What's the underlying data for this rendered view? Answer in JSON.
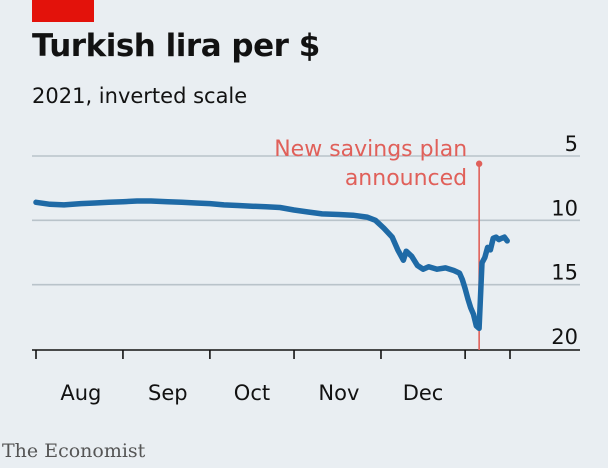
{
  "header": {
    "title": "Turkish lira per $",
    "subtitle": "2021, inverted scale"
  },
  "footer": {
    "source": "The Economist"
  },
  "colors": {
    "accent": "#e3120b",
    "line": "#1f6aa6",
    "annotation": "#e0605a",
    "grid": "#b9c3ca",
    "text": "#121212",
    "background": "#e9eef2"
  },
  "chart_data": {
    "type": "line",
    "inverted_y": true,
    "ylim": [
      5,
      20
    ],
    "yticks": [
      5,
      10,
      15,
      20
    ],
    "xlim": [
      "2021-07-15",
      "2021-12-31"
    ],
    "month_ticks": [
      "2021-07-15",
      "2021-08-15",
      "2021-09-15",
      "2021-10-15",
      "2021-11-15",
      "2021-12-15",
      "2021-12-31"
    ],
    "month_labels": [
      {
        "date": "2021-07-31",
        "label": "Aug"
      },
      {
        "date": "2021-08-31",
        "label": "Sep"
      },
      {
        "date": "2021-09-30",
        "label": "Oct"
      },
      {
        "date": "2021-10-31",
        "label": "Nov"
      },
      {
        "date": "2021-11-30",
        "label": "Dec"
      }
    ],
    "annotation": {
      "date": "2021-12-20",
      "value": 5.6,
      "lines": [
        "New savings plan",
        "announced"
      ]
    },
    "series": [
      {
        "points": [
          [
            "2021-07-15",
            8.6
          ],
          [
            "2021-07-20",
            8.75
          ],
          [
            "2021-07-25",
            8.8
          ],
          [
            "2021-07-31",
            8.7
          ],
          [
            "2021-08-05",
            8.65
          ],
          [
            "2021-08-10",
            8.6
          ],
          [
            "2021-08-15",
            8.55
          ],
          [
            "2021-08-20",
            8.5
          ],
          [
            "2021-08-25",
            8.5
          ],
          [
            "2021-08-31",
            8.55
          ],
          [
            "2021-09-05",
            8.6
          ],
          [
            "2021-09-10",
            8.65
          ],
          [
            "2021-09-15",
            8.7
          ],
          [
            "2021-09-20",
            8.8
          ],
          [
            "2021-09-25",
            8.85
          ],
          [
            "2021-09-30",
            8.9
          ],
          [
            "2021-10-05",
            8.95
          ],
          [
            "2021-10-10",
            9.0
          ],
          [
            "2021-10-15",
            9.2
          ],
          [
            "2021-10-20",
            9.35
          ],
          [
            "2021-10-25",
            9.5
          ],
          [
            "2021-10-31",
            9.55
          ],
          [
            "2021-11-05",
            9.6
          ],
          [
            "2021-11-10",
            9.75
          ],
          [
            "2021-11-13",
            10.0
          ],
          [
            "2021-11-16",
            10.6
          ],
          [
            "2021-11-19",
            11.3
          ],
          [
            "2021-11-21",
            12.3
          ],
          [
            "2021-11-23",
            13.1
          ],
          [
            "2021-11-24",
            12.4
          ],
          [
            "2021-11-26",
            12.8
          ],
          [
            "2021-11-28",
            13.5
          ],
          [
            "2021-11-30",
            13.8
          ],
          [
            "2021-12-02",
            13.6
          ],
          [
            "2021-12-05",
            13.8
          ],
          [
            "2021-12-08",
            13.7
          ],
          [
            "2021-12-11",
            13.9
          ],
          [
            "2021-12-13",
            14.1
          ],
          [
            "2021-12-14",
            14.6
          ],
          [
            "2021-12-15",
            15.3
          ],
          [
            "2021-12-16",
            16.1
          ],
          [
            "2021-12-17",
            16.8
          ],
          [
            "2021-12-18",
            17.3
          ],
          [
            "2021-12-19",
            18.2
          ],
          [
            "2021-12-20",
            18.4
          ],
          [
            "2021-12-21",
            13.3
          ],
          [
            "2021-12-22",
            12.9
          ],
          [
            "2021-12-23",
            12.1
          ],
          [
            "2021-12-24",
            12.3
          ],
          [
            "2021-12-25",
            11.4
          ],
          [
            "2021-12-26",
            11.3
          ],
          [
            "2021-12-27",
            11.5
          ],
          [
            "2021-12-28",
            11.4
          ],
          [
            "2021-12-29",
            11.3
          ],
          [
            "2021-12-30",
            11.6
          ]
        ]
      }
    ]
  }
}
